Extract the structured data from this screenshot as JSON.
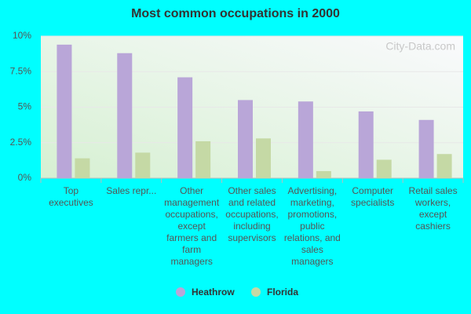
{
  "chart_data": {
    "type": "bar",
    "title": "Most common occupations in 2000",
    "watermark": "City-Data.com",
    "categories": [
      "Top executives",
      "Sales repr...",
      "Other management occupations, except farmers and farm managers",
      "Other sales and related occupations, including supervisors",
      "Advertising, marketing, promotions, public relations, and sales managers",
      "Computer specialists",
      "Retail sales workers, except cashiers"
    ],
    "series": [
      {
        "name": "Heathrow",
        "color": "#b9a6d8",
        "values": [
          9.4,
          8.8,
          7.1,
          5.5,
          5.4,
          4.7,
          4.1
        ]
      },
      {
        "name": "Florida",
        "color": "#c5d9a5",
        "values": [
          1.4,
          1.8,
          2.6,
          2.8,
          0.5,
          1.3,
          1.7
        ]
      }
    ],
    "ylim": [
      0,
      10
    ],
    "yticks": [
      {
        "value": 0,
        "label": "0%"
      },
      {
        "value": 2.5,
        "label": "2.5%"
      },
      {
        "value": 5,
        "label": "5%"
      },
      {
        "value": 7.5,
        "label": "7.5%"
      },
      {
        "value": 10,
        "label": "10%"
      }
    ],
    "grid": true,
    "legend": "bottom"
  }
}
